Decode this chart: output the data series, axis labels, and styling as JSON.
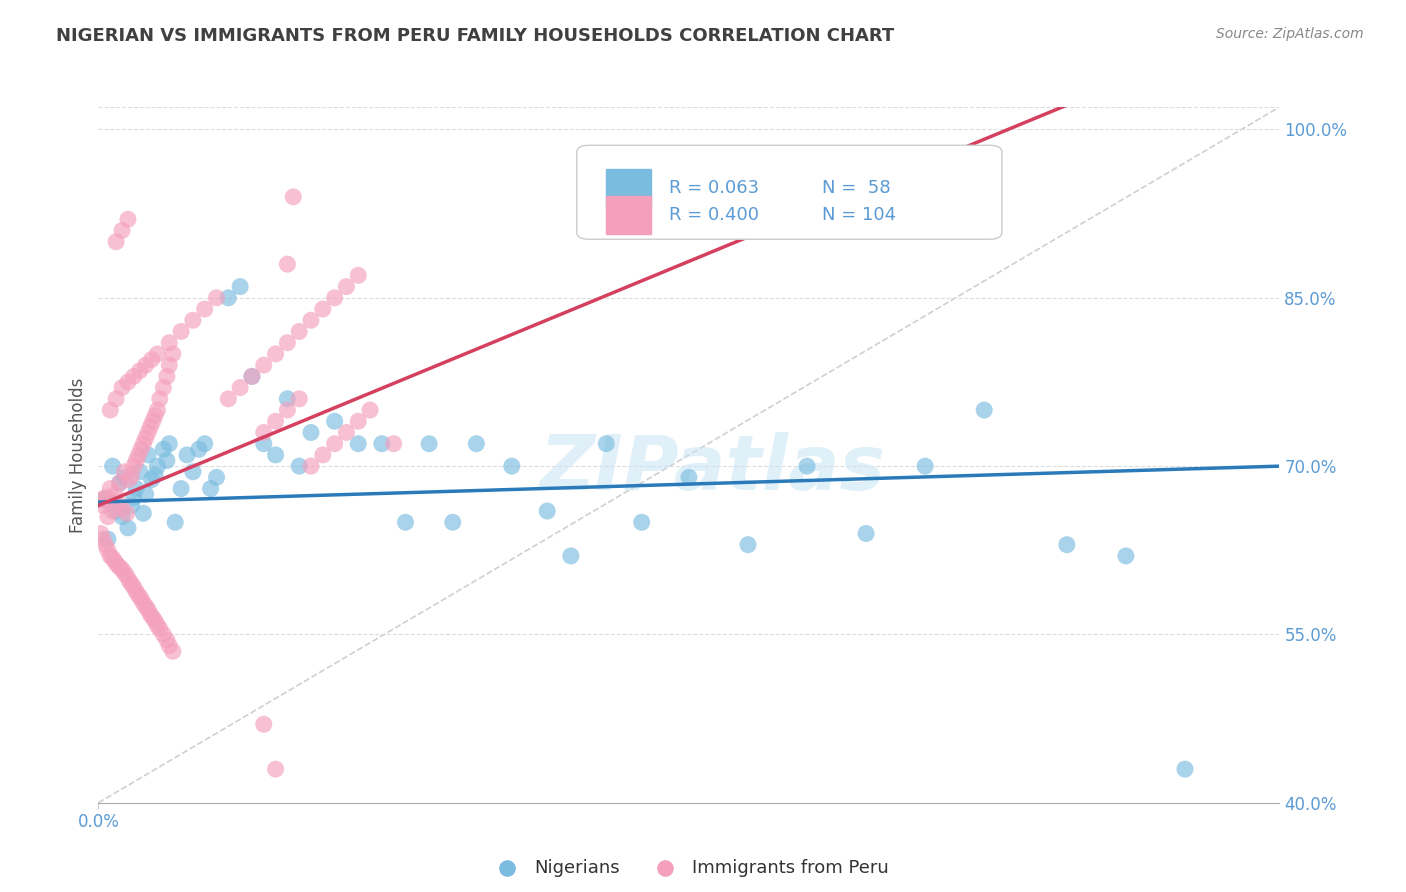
{
  "title": "NIGERIAN VS IMMIGRANTS FROM PERU FAMILY HOUSEHOLDS CORRELATION CHART",
  "source": "Source: ZipAtlas.com",
  "ylabel": "Family Households",
  "xlim": [
    0.0,
    1.0
  ],
  "ylim": [
    0.4,
    1.02
  ],
  "yticks": [
    0.4,
    0.55,
    0.7,
    0.85,
    1.0
  ],
  "ytick_labels": [
    "40.0%",
    "55.0%",
    "70.0%",
    "85.0%",
    "100.0%"
  ],
  "blue_R": 0.063,
  "blue_N": 58,
  "pink_R": 0.4,
  "pink_N": 104,
  "blue_color": "#7abce0",
  "pink_color": "#f4a0bc",
  "blue_line_color": "#2b7bba",
  "pink_line_color": "#d44060",
  "ref_line_color": "#cccccc",
  "legend_blue_label": "Nigerians",
  "legend_pink_label": "Immigrants from Peru",
  "watermark": "ZIPatlas",
  "title_color": "#404040",
  "axis_color": "#5b9bd5",
  "blue_scatter_x": [
    0.005,
    0.008,
    0.012,
    0.015,
    0.018,
    0.02,
    0.022,
    0.025,
    0.028,
    0.03,
    0.032,
    0.035,
    0.038,
    0.04,
    0.042,
    0.045,
    0.048,
    0.05,
    0.055,
    0.058,
    0.06,
    0.065,
    0.07,
    0.075,
    0.08,
    0.085,
    0.09,
    0.095,
    0.1,
    0.11,
    0.12,
    0.13,
    0.14,
    0.15,
    0.16,
    0.17,
    0.18,
    0.2,
    0.22,
    0.24,
    0.26,
    0.28,
    0.3,
    0.32,
    0.35,
    0.38,
    0.4,
    0.43,
    0.46,
    0.5,
    0.55,
    0.6,
    0.65,
    0.7,
    0.75,
    0.82,
    0.87,
    0.92
  ],
  "blue_scatter_y": [
    0.67,
    0.635,
    0.7,
    0.66,
    0.685,
    0.655,
    0.69,
    0.645,
    0.665,
    0.672,
    0.68,
    0.695,
    0.658,
    0.675,
    0.71,
    0.688,
    0.692,
    0.7,
    0.715,
    0.705,
    0.72,
    0.65,
    0.68,
    0.71,
    0.695,
    0.715,
    0.72,
    0.68,
    0.69,
    0.85,
    0.86,
    0.78,
    0.72,
    0.71,
    0.76,
    0.7,
    0.73,
    0.74,
    0.72,
    0.72,
    0.65,
    0.72,
    0.65,
    0.72,
    0.7,
    0.66,
    0.62,
    0.72,
    0.65,
    0.69,
    0.63,
    0.7,
    0.64,
    0.7,
    0.75,
    0.63,
    0.62,
    0.43
  ],
  "pink_scatter_x": [
    0.002,
    0.004,
    0.006,
    0.008,
    0.01,
    0.012,
    0.014,
    0.016,
    0.018,
    0.02,
    0.022,
    0.024,
    0.026,
    0.028,
    0.03,
    0.032,
    0.034,
    0.036,
    0.038,
    0.04,
    0.042,
    0.044,
    0.046,
    0.048,
    0.05,
    0.052,
    0.055,
    0.058,
    0.06,
    0.063,
    0.002,
    0.004,
    0.006,
    0.008,
    0.01,
    0.012,
    0.014,
    0.016,
    0.018,
    0.02,
    0.022,
    0.024,
    0.026,
    0.028,
    0.03,
    0.032,
    0.034,
    0.036,
    0.038,
    0.04,
    0.042,
    0.044,
    0.046,
    0.048,
    0.05,
    0.052,
    0.055,
    0.058,
    0.06,
    0.063,
    0.01,
    0.015,
    0.02,
    0.025,
    0.03,
    0.035,
    0.04,
    0.045,
    0.05,
    0.06,
    0.07,
    0.08,
    0.09,
    0.1,
    0.11,
    0.12,
    0.13,
    0.14,
    0.15,
    0.16,
    0.17,
    0.18,
    0.19,
    0.2,
    0.21,
    0.22,
    0.14,
    0.15,
    0.16,
    0.17,
    0.18,
    0.19,
    0.2,
    0.21,
    0.22,
    0.23,
    0.015,
    0.02,
    0.025,
    0.14,
    0.15,
    0.25,
    0.16,
    0.165
  ],
  "pink_scatter_y": [
    0.67,
    0.665,
    0.672,
    0.655,
    0.68,
    0.66,
    0.675,
    0.668,
    0.685,
    0.662,
    0.695,
    0.658,
    0.688,
    0.692,
    0.7,
    0.705,
    0.71,
    0.715,
    0.72,
    0.725,
    0.73,
    0.735,
    0.74,
    0.745,
    0.75,
    0.76,
    0.77,
    0.78,
    0.79,
    0.8,
    0.64,
    0.635,
    0.63,
    0.625,
    0.62,
    0.618,
    0.615,
    0.612,
    0.61,
    0.608,
    0.605,
    0.602,
    0.598,
    0.595,
    0.592,
    0.588,
    0.585,
    0.582,
    0.578,
    0.575,
    0.572,
    0.568,
    0.565,
    0.562,
    0.558,
    0.555,
    0.55,
    0.545,
    0.54,
    0.535,
    0.75,
    0.76,
    0.77,
    0.775,
    0.78,
    0.785,
    0.79,
    0.795,
    0.8,
    0.81,
    0.82,
    0.83,
    0.84,
    0.85,
    0.76,
    0.77,
    0.78,
    0.79,
    0.8,
    0.81,
    0.82,
    0.83,
    0.84,
    0.85,
    0.86,
    0.87,
    0.73,
    0.74,
    0.75,
    0.76,
    0.7,
    0.71,
    0.72,
    0.73,
    0.74,
    0.75,
    0.9,
    0.91,
    0.92,
    0.47,
    0.43,
    0.72,
    0.88,
    0.94
  ]
}
